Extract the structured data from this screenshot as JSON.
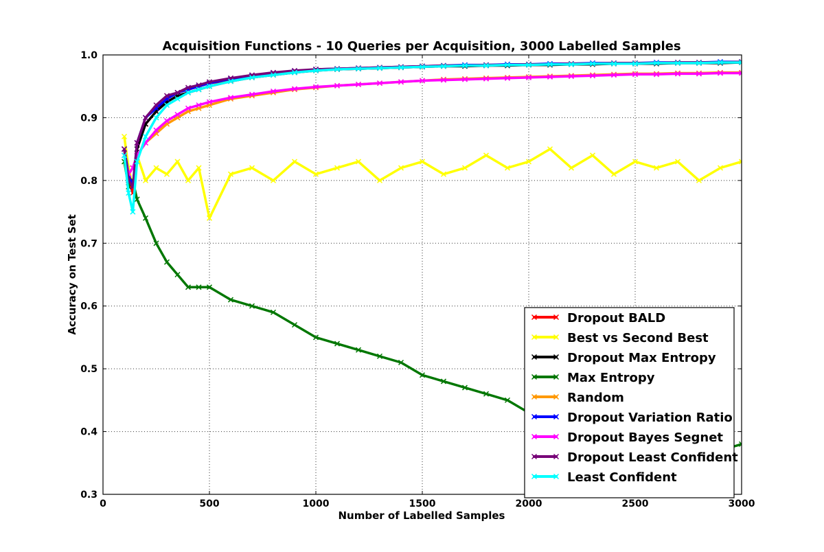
{
  "chart_data": {
    "type": "line",
    "title": "Acquisition Functions - 10 Queries per Acquisition, 3000 Labelled Samples",
    "xlabel": "Number of Labelled Samples",
    "ylabel": "Accuracy on Test Set",
    "xlim": [
      0,
      3000
    ],
    "ylim": [
      0.3,
      1.0
    ],
    "xticks": [
      0,
      500,
      1000,
      1500,
      2000,
      2500,
      3000
    ],
    "yticks": [
      0.3,
      0.4,
      0.5,
      0.6,
      0.7,
      0.8,
      0.9,
      1.0
    ],
    "grid": true,
    "legend_position": "bottom-right",
    "x": [
      100,
      120,
      140,
      160,
      200,
      250,
      300,
      350,
      400,
      450,
      500,
      600,
      700,
      800,
      900,
      1000,
      1100,
      1200,
      1300,
      1400,
      1500,
      1600,
      1700,
      1800,
      1900,
      2000,
      2100,
      2200,
      2300,
      2400,
      2500,
      2600,
      2700,
      2800,
      2900,
      3000
    ],
    "series": [
      {
        "name": "Dropout BALD",
        "color": "#ff0000",
        "values": [
          0.85,
          0.8,
          0.78,
          0.86,
          0.89,
          0.91,
          0.93,
          0.94,
          0.945,
          0.95,
          0.955,
          0.96,
          0.966,
          0.97,
          0.973,
          0.976,
          0.977,
          0.978,
          0.979,
          0.98,
          0.981,
          0.982,
          0.983,
          0.983,
          0.984,
          0.984,
          0.985,
          0.985,
          0.986,
          0.986,
          0.986,
          0.987,
          0.987,
          0.987,
          0.988,
          0.988
        ]
      },
      {
        "name": "Best vs Second Best",
        "color": "#ffff00",
        "values": [
          0.87,
          0.82,
          0.79,
          0.84,
          0.8,
          0.82,
          0.81,
          0.83,
          0.8,
          0.82,
          0.74,
          0.81,
          0.82,
          0.8,
          0.83,
          0.81,
          0.82,
          0.83,
          0.8,
          0.82,
          0.83,
          0.81,
          0.82,
          0.84,
          0.82,
          0.83,
          0.85,
          0.82,
          0.84,
          0.81,
          0.83,
          0.82,
          0.83,
          0.8,
          0.82,
          0.83
        ]
      },
      {
        "name": "Dropout Max Entropy",
        "color": "#000000",
        "values": [
          0.85,
          0.8,
          0.79,
          0.85,
          0.89,
          0.91,
          0.925,
          0.935,
          0.94,
          0.945,
          0.95,
          0.958,
          0.964,
          0.968,
          0.972,
          0.975,
          0.977,
          0.978,
          0.979,
          0.98,
          0.981,
          0.982,
          0.982,
          0.983,
          0.983,
          0.984,
          0.984,
          0.985,
          0.985,
          0.986,
          0.986,
          0.986,
          0.987,
          0.987,
          0.987,
          0.988
        ]
      },
      {
        "name": "Max Entropy",
        "color": "#007700",
        "values": [
          0.83,
          0.79,
          0.8,
          0.77,
          0.74,
          0.7,
          0.67,
          0.65,
          0.63,
          0.63,
          0.63,
          0.61,
          0.6,
          0.59,
          0.57,
          0.55,
          0.54,
          0.53,
          0.52,
          0.51,
          0.49,
          0.48,
          0.47,
          0.46,
          0.45,
          0.43,
          0.42,
          0.41,
          0.4,
          0.4,
          0.39,
          0.39,
          0.38,
          0.38,
          0.37,
          0.38
        ]
      },
      {
        "name": "Random",
        "color": "#ff9900",
        "values": [
          0.84,
          0.81,
          0.82,
          0.84,
          0.86,
          0.875,
          0.89,
          0.9,
          0.91,
          0.915,
          0.92,
          0.93,
          0.935,
          0.94,
          0.945,
          0.948,
          0.951,
          0.953,
          0.955,
          0.957,
          0.959,
          0.961,
          0.962,
          0.963,
          0.964,
          0.965,
          0.966,
          0.967,
          0.968,
          0.969,
          0.97,
          0.97,
          0.971,
          0.971,
          0.972,
          0.972
        ]
      },
      {
        "name": "Dropout Variation Ratio",
        "color": "#0000ff",
        "values": [
          0.85,
          0.81,
          0.79,
          0.86,
          0.9,
          0.915,
          0.93,
          0.94,
          0.945,
          0.95,
          0.955,
          0.962,
          0.967,
          0.971,
          0.974,
          0.977,
          0.978,
          0.979,
          0.98,
          0.981,
          0.982,
          0.983,
          0.984,
          0.984,
          0.985,
          0.985,
          0.986,
          0.986,
          0.987,
          0.987,
          0.987,
          0.988,
          0.988,
          0.988,
          0.989,
          0.989
        ]
      },
      {
        "name": "Dropout Bayes Segnet",
        "color": "#ff00ff",
        "values": [
          0.84,
          0.81,
          0.82,
          0.84,
          0.86,
          0.88,
          0.895,
          0.905,
          0.915,
          0.92,
          0.925,
          0.932,
          0.937,
          0.942,
          0.946,
          0.949,
          0.951,
          0.953,
          0.955,
          0.957,
          0.959,
          0.96,
          0.961,
          0.962,
          0.963,
          0.964,
          0.965,
          0.966,
          0.967,
          0.968,
          0.969,
          0.969,
          0.97,
          0.97,
          0.971,
          0.971
        ]
      },
      {
        "name": "Dropout Least Confident",
        "color": "#770077",
        "values": [
          0.85,
          0.8,
          0.79,
          0.86,
          0.9,
          0.92,
          0.935,
          0.94,
          0.948,
          0.952,
          0.957,
          0.963,
          0.968,
          0.972,
          0.975,
          0.977,
          0.978,
          0.979,
          0.98,
          0.981,
          0.982,
          0.983,
          0.983,
          0.984,
          0.984,
          0.985,
          0.985,
          0.986,
          0.986,
          0.987,
          0.987,
          0.987,
          0.988,
          0.988,
          0.988,
          0.989
        ]
      },
      {
        "name": "Least Confident",
        "color": "#00ffff",
        "values": [
          0.84,
          0.78,
          0.75,
          0.83,
          0.87,
          0.9,
          0.92,
          0.93,
          0.94,
          0.945,
          0.95,
          0.958,
          0.964,
          0.968,
          0.972,
          0.975,
          0.977,
          0.978,
          0.979,
          0.98,
          0.981,
          0.982,
          0.983,
          0.983,
          0.984,
          0.984,
          0.985,
          0.985,
          0.986,
          0.986,
          0.986,
          0.987,
          0.987,
          0.987,
          0.988,
          0.988
        ]
      }
    ]
  }
}
